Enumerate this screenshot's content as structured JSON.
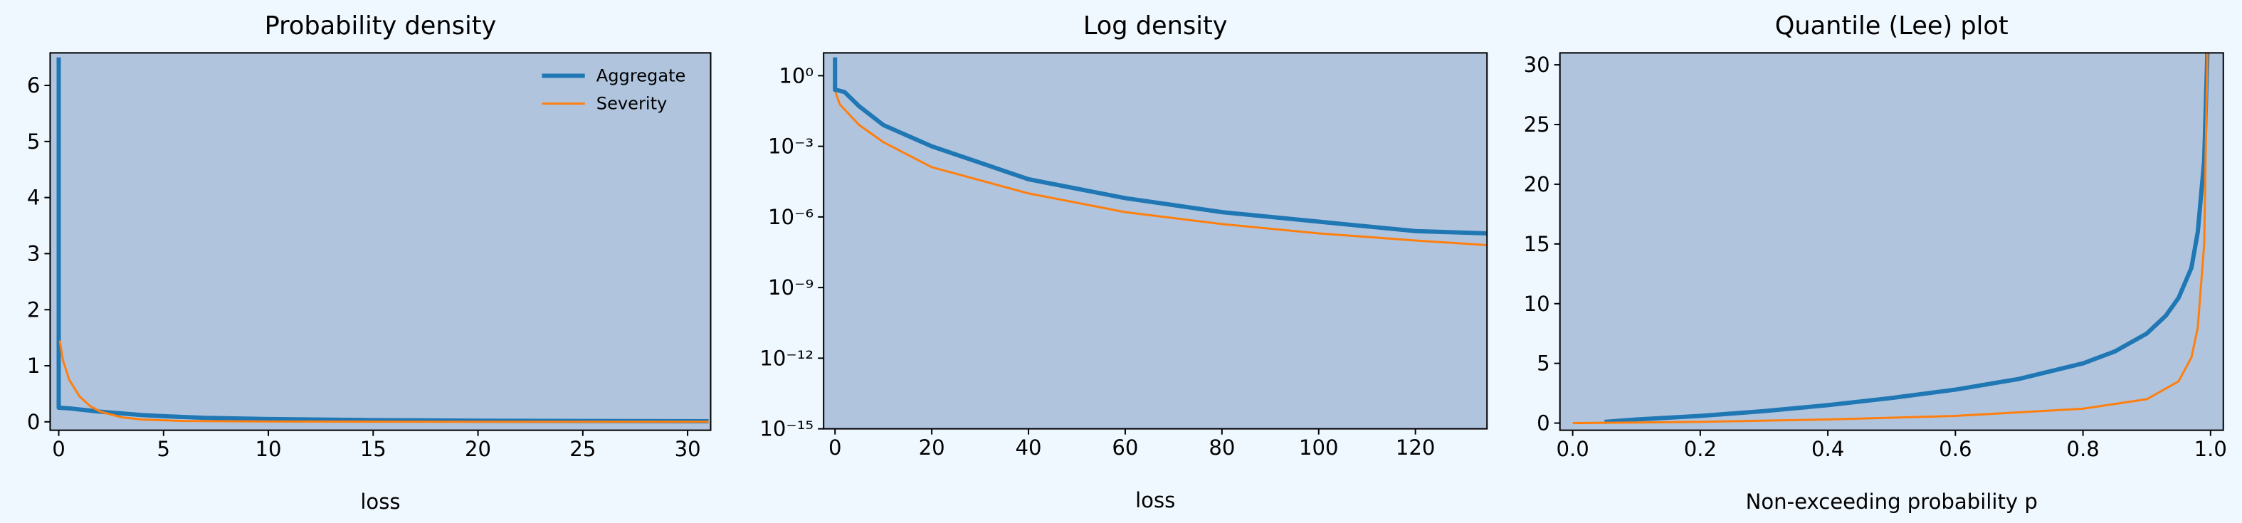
{
  "chart_data": [
    {
      "type": "line",
      "title": "Probability density",
      "xlabel": "loss",
      "xlim": [
        -0.41,
        31.1
      ],
      "ylim": [
        -0.15,
        6.58
      ],
      "xticks": [
        0,
        5,
        10,
        15,
        20,
        25,
        30
      ],
      "yticks": [
        0,
        1,
        2,
        3,
        4,
        5,
        6
      ],
      "log_y": false,
      "legend": "upper right",
      "series": [
        {
          "name": "Aggregate",
          "color": "#1f77b4",
          "x": [
            0,
            0,
            0.1,
            0.5,
            1,
            2,
            3,
            4,
            5,
            7,
            10,
            15,
            20,
            25,
            31
          ],
          "values": [
            6.5,
            0.25,
            0.25,
            0.24,
            0.22,
            0.18,
            0.15,
            0.12,
            0.1,
            0.07,
            0.05,
            0.03,
            0.02,
            0.015,
            0.01
          ]
        },
        {
          "name": "Severity",
          "color": "#ff7f0e",
          "x": [
            0.05,
            0.2,
            0.5,
            1,
            1.5,
            2,
            3,
            4,
            6,
            10,
            20,
            31
          ],
          "values": [
            1.45,
            1.1,
            0.75,
            0.45,
            0.28,
            0.18,
            0.08,
            0.04,
            0.015,
            0.005,
            0.001,
            0.0005
          ]
        }
      ]
    },
    {
      "type": "line",
      "title": "Log density",
      "xlabel": "loss",
      "xlim": [
        -2.36,
        134.8
      ],
      "ylim": [
        1e-15,
        9.3
      ],
      "xticks": [
        0,
        20,
        40,
        60,
        80,
        100,
        120
      ],
      "yticks": [
        {
          "value": 1,
          "label": "10⁰"
        },
        {
          "value": 0.001,
          "label": "10⁻³"
        },
        {
          "value": 1e-06,
          "label": "10⁻⁶"
        },
        {
          "value": 1e-09,
          "label": "10⁻⁹"
        },
        {
          "value": 1e-12,
          "label": "10⁻¹²"
        },
        {
          "value": 1e-15,
          "label": "10⁻¹⁵"
        }
      ],
      "log_y": true,
      "series": [
        {
          "color": "#1f77b4",
          "x": [
            0,
            0,
            0.3,
            2,
            5,
            10,
            20,
            40,
            60,
            80,
            100,
            120,
            135
          ],
          "values": [
            6,
            0.25,
            0.25,
            0.2,
            0.05,
            0.008,
            0.001,
            4e-05,
            6.3e-06,
            1.6e-06,
            6.3e-07,
            2.5e-07,
            2e-07
          ]
        },
        {
          "color": "#ff7f0e",
          "x": [
            0.1,
            1,
            5,
            10,
            20,
            40,
            60,
            80,
            100,
            120,
            135
          ],
          "values": [
            0.2,
            0.06,
            0.008,
            0.0015,
            0.00013,
            1e-05,
            1.6e-06,
            5e-07,
            2e-07,
            1e-07,
            6.3e-08
          ]
        }
      ]
    },
    {
      "type": "line",
      "title": "Quantile (Lee) plot",
      "xlabel": "Non-exceeding probability p",
      "xlim": [
        -0.02,
        1.02
      ],
      "ylim": [
        -0.6,
        31
      ],
      "xticks": [
        {
          "value": 0,
          "label": "0.0"
        },
        0.2,
        0.4,
        0.6,
        0.8,
        {
          "value": 1,
          "label": "1.0"
        }
      ],
      "yticks": [
        0,
        5,
        10,
        15,
        20,
        25,
        30
      ],
      "log_y": false,
      "series": [
        {
          "color": "#1f77b4",
          "x": [
            0.05,
            0.1,
            0.2,
            0.3,
            0.4,
            0.5,
            0.6,
            0.7,
            0.8,
            0.85,
            0.9,
            0.93,
            0.95,
            0.97,
            0.98,
            0.99,
            0.995
          ],
          "values": [
            0.1,
            0.3,
            0.6,
            1.0,
            1.5,
            2.1,
            2.8,
            3.7,
            5.0,
            6.0,
            7.5,
            9.0,
            10.5,
            13,
            16,
            22,
            31
          ]
        },
        {
          "color": "#ff7f0e",
          "x": [
            0,
            0.2,
            0.4,
            0.6,
            0.8,
            0.9,
            0.95,
            0.97,
            0.98,
            0.99,
            0.995
          ],
          "values": [
            0,
            0.1,
            0.3,
            0.6,
            1.2,
            2,
            3.5,
            5.5,
            8,
            15,
            31
          ]
        }
      ]
    }
  ]
}
